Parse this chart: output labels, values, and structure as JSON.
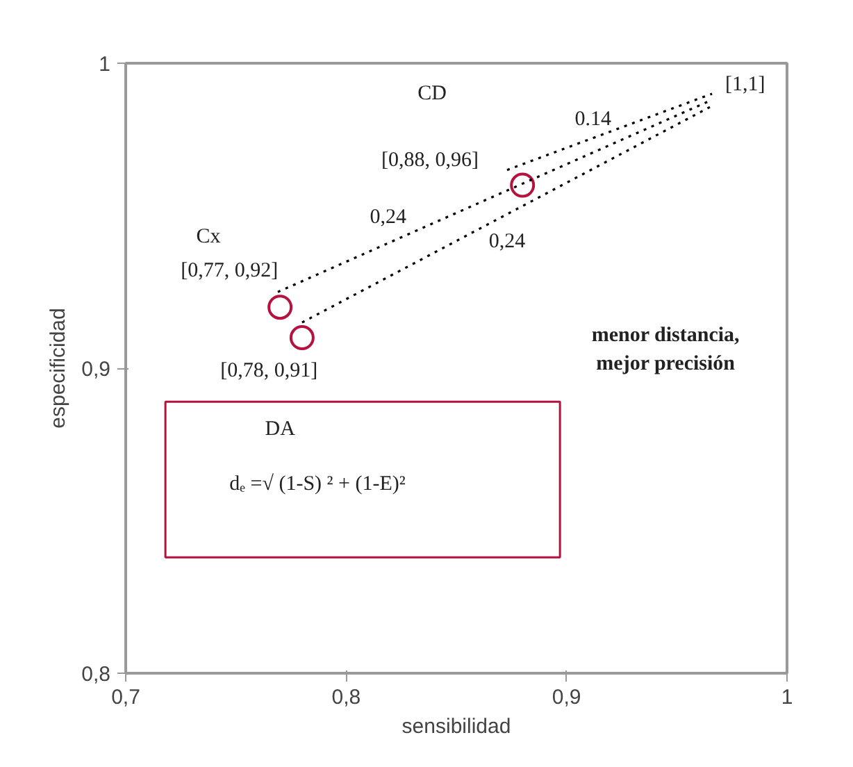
{
  "chart_data": {
    "type": "scatter",
    "xlabel": "sensibilidad",
    "ylabel": "especificidad",
    "xlim": [
      0.7,
      1
    ],
    "ylim": [
      0.8,
      1
    ],
    "xticks": [
      {
        "value": 0.7,
        "label": "0,7"
      },
      {
        "value": 0.8,
        "label": "0,8"
      },
      {
        "value": 0.9,
        "label": "0,9"
      },
      1
    ],
    "yticks": [
      {
        "value": 0.8,
        "label": "0,8"
      },
      {
        "value": 0.9,
        "label": "0,9"
      },
      1
    ],
    "grid": false,
    "series": [
      {
        "color": "#b5123e",
        "marker": "circle",
        "x": [
          0.77,
          0.78,
          0.88
        ],
        "values": [
          0.92,
          0.91,
          0.96
        ]
      },
      {
        "type": "line",
        "color": "#000000",
        "line_style": "dotted",
        "marker": "none",
        "x": [
          0.873,
          0.966
        ],
        "values": [
          0.965,
          0.99
        ]
      },
      {
        "type": "line",
        "color": "#000000",
        "line_style": "dotted",
        "marker": "none",
        "x": [
          0.769,
          0.966
        ],
        "values": [
          0.925,
          0.988
        ]
      },
      {
        "type": "line",
        "color": "#000000",
        "line_style": "dotted",
        "marker": "none",
        "x": [
          0.78,
          0.966
        ],
        "values": [
          0.915,
          0.986
        ]
      }
    ],
    "annotations": [
      "CD",
      "[1,1]",
      "0.14",
      "[0,88, 0,96]",
      "Cx",
      "[0,77, 0,92]",
      "0,24",
      "0,24",
      "[0,78, 0,91]",
      "menor distancia,\nmejor precisión",
      "DA",
      "dₑ =√ (1-S) ² + (1-E)²"
    ]
  }
}
